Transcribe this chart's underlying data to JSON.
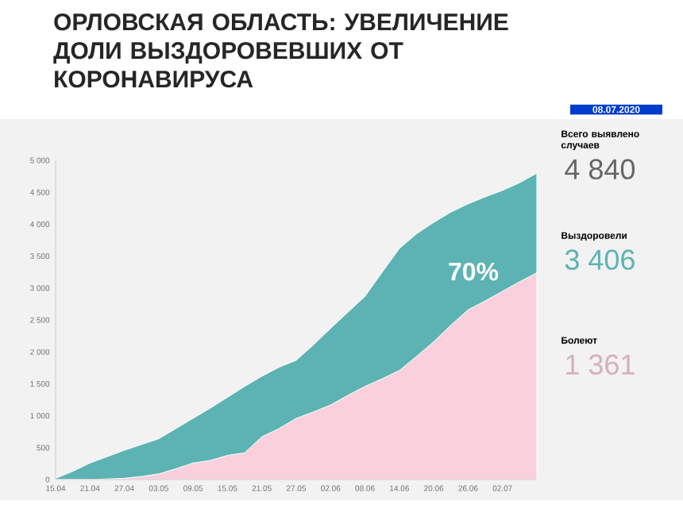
{
  "chart_data": {
    "type": "area",
    "title": "ОРЛОВСКАЯ ОБЛАСТЬ: УВЕЛИЧЕНИЕ ДОЛИ ВЫЗДОРОВЕВШИХ ОТ КОРОНАВИРУСА",
    "x": [
      "2020-04-15",
      "2020-04-18",
      "2020-04-21",
      "2020-04-24",
      "2020-04-27",
      "2020-04-30",
      "2020-05-03",
      "2020-05-06",
      "2020-05-09",
      "2020-05-12",
      "2020-05-15",
      "2020-05-18",
      "2020-05-21",
      "2020-05-24",
      "2020-05-27",
      "2020-05-30",
      "2020-06-02",
      "2020-06-05",
      "2020-06-08",
      "2020-06-11",
      "2020-06-14",
      "2020-06-17",
      "2020-06-20",
      "2020-06-23",
      "2020-06-26",
      "2020-06-29",
      "2020-07-02",
      "2020-07-05",
      "2020-07-08"
    ],
    "series": [
      {
        "color": "#5db3b3",
        "values": [
          20,
          130,
          260,
          360,
          460,
          550,
          640,
          800,
          960,
          1120,
          1290,
          1460,
          1620,
          1760,
          1870,
          2110,
          2370,
          2620,
          2870,
          3250,
          3620,
          3850,
          4030,
          4190,
          4320,
          4430,
          4530,
          4650,
          4800
        ]
      },
      {
        "color": "#f9d0dc",
        "values": [
          0,
          0,
          0,
          10,
          20,
          50,
          90,
          170,
          260,
          300,
          380,
          420,
          670,
          800,
          960,
          1060,
          1170,
          1320,
          1460,
          1580,
          1710,
          1930,
          2160,
          2420,
          2660,
          2800,
          2950,
          3100,
          3240
        ]
      }
    ],
    "xticks": [
      {
        "value": "2020-04-15",
        "label": "15.04"
      },
      {
        "value": "2020-04-21",
        "label": "21.04"
      },
      {
        "value": "2020-04-27",
        "label": "27.04"
      },
      {
        "value": "2020-05-03",
        "label": "03.05"
      },
      {
        "value": "2020-05-09",
        "label": "09.05"
      },
      {
        "value": "2020-05-15",
        "label": "15.05"
      },
      {
        "value": "2020-05-21",
        "label": "21.05"
      },
      {
        "value": "2020-05-27",
        "label": "27.05"
      },
      {
        "value": "2020-06-02",
        "label": "02.06"
      },
      {
        "value": "2020-06-08",
        "label": "08.06"
      },
      {
        "value": "2020-06-14",
        "label": "14.06"
      },
      {
        "value": "2020-06-20",
        "label": "20.06"
      },
      {
        "value": "2020-06-26",
        "label": "26.06"
      },
      {
        "value": "2020-07-02",
        "label": "02.07"
      }
    ],
    "xlim": [
      "2020-04-15",
      "2020-07-08"
    ],
    "ylim": [
      0,
      5000
    ],
    "yticks": [
      0,
      500,
      {
        "value": 1000,
        "label": "1 000"
      },
      {
        "value": 1500,
        "label": "1 500"
      },
      {
        "value": 2000,
        "label": "2 000"
      },
      {
        "value": 2500,
        "label": "2 500"
      },
      {
        "value": 3000,
        "label": "3 000"
      },
      {
        "value": 3500,
        "label": "3 500"
      },
      {
        "value": 4000,
        "label": "4 000"
      },
      {
        "value": 4500,
        "label": "4 500"
      },
      {
        "value": 5000,
        "label": "5 000"
      }
    ],
    "annotations": [
      "70%",
      "08.07.2020",
      "Всего выявлено случаев",
      "4 840",
      "Выздоровели",
      "3 406",
      "Болеют",
      "1 361"
    ]
  }
}
